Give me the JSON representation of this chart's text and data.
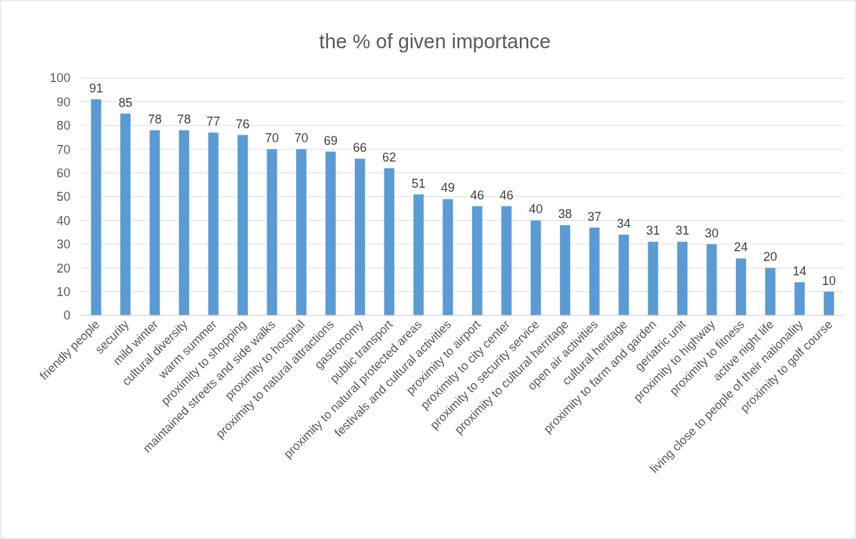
{
  "chart_data": {
    "type": "bar",
    "title": "the % of given importance",
    "categories": [
      "friendly people",
      "security",
      "mild winter",
      "cultural diversity",
      "warm summer",
      "proximity to shopping",
      "maintained streets and side walks",
      "proximity to hospital",
      "proximity to natural attractions",
      "gastronomy",
      "public transport",
      "proximity to natural protected areas",
      "festivals and cultural activities",
      "proximity to airport",
      "proximity to city center",
      "proximity to security service",
      "proximity to cultural herritage",
      "open air activities",
      "cultural heritage",
      "proximity to farm and garden",
      "geriatric unit",
      "proximity to highway",
      "proximity to fitness",
      "active night life",
      "living close to people of their nationality",
      "proximity to golf course"
    ],
    "values": [
      91,
      85,
      78,
      78,
      77,
      76,
      70,
      70,
      69,
      66,
      62,
      51,
      49,
      46,
      46,
      40,
      38,
      37,
      34,
      31,
      31,
      30,
      24,
      20,
      14,
      10
    ],
    "color": "#5b9bd5",
    "ylim": [
      0,
      100
    ],
    "yticks": [
      0,
      10,
      20,
      30,
      40,
      50,
      60,
      70,
      80,
      90,
      100
    ],
    "grid": "y",
    "data_labels": true
  }
}
